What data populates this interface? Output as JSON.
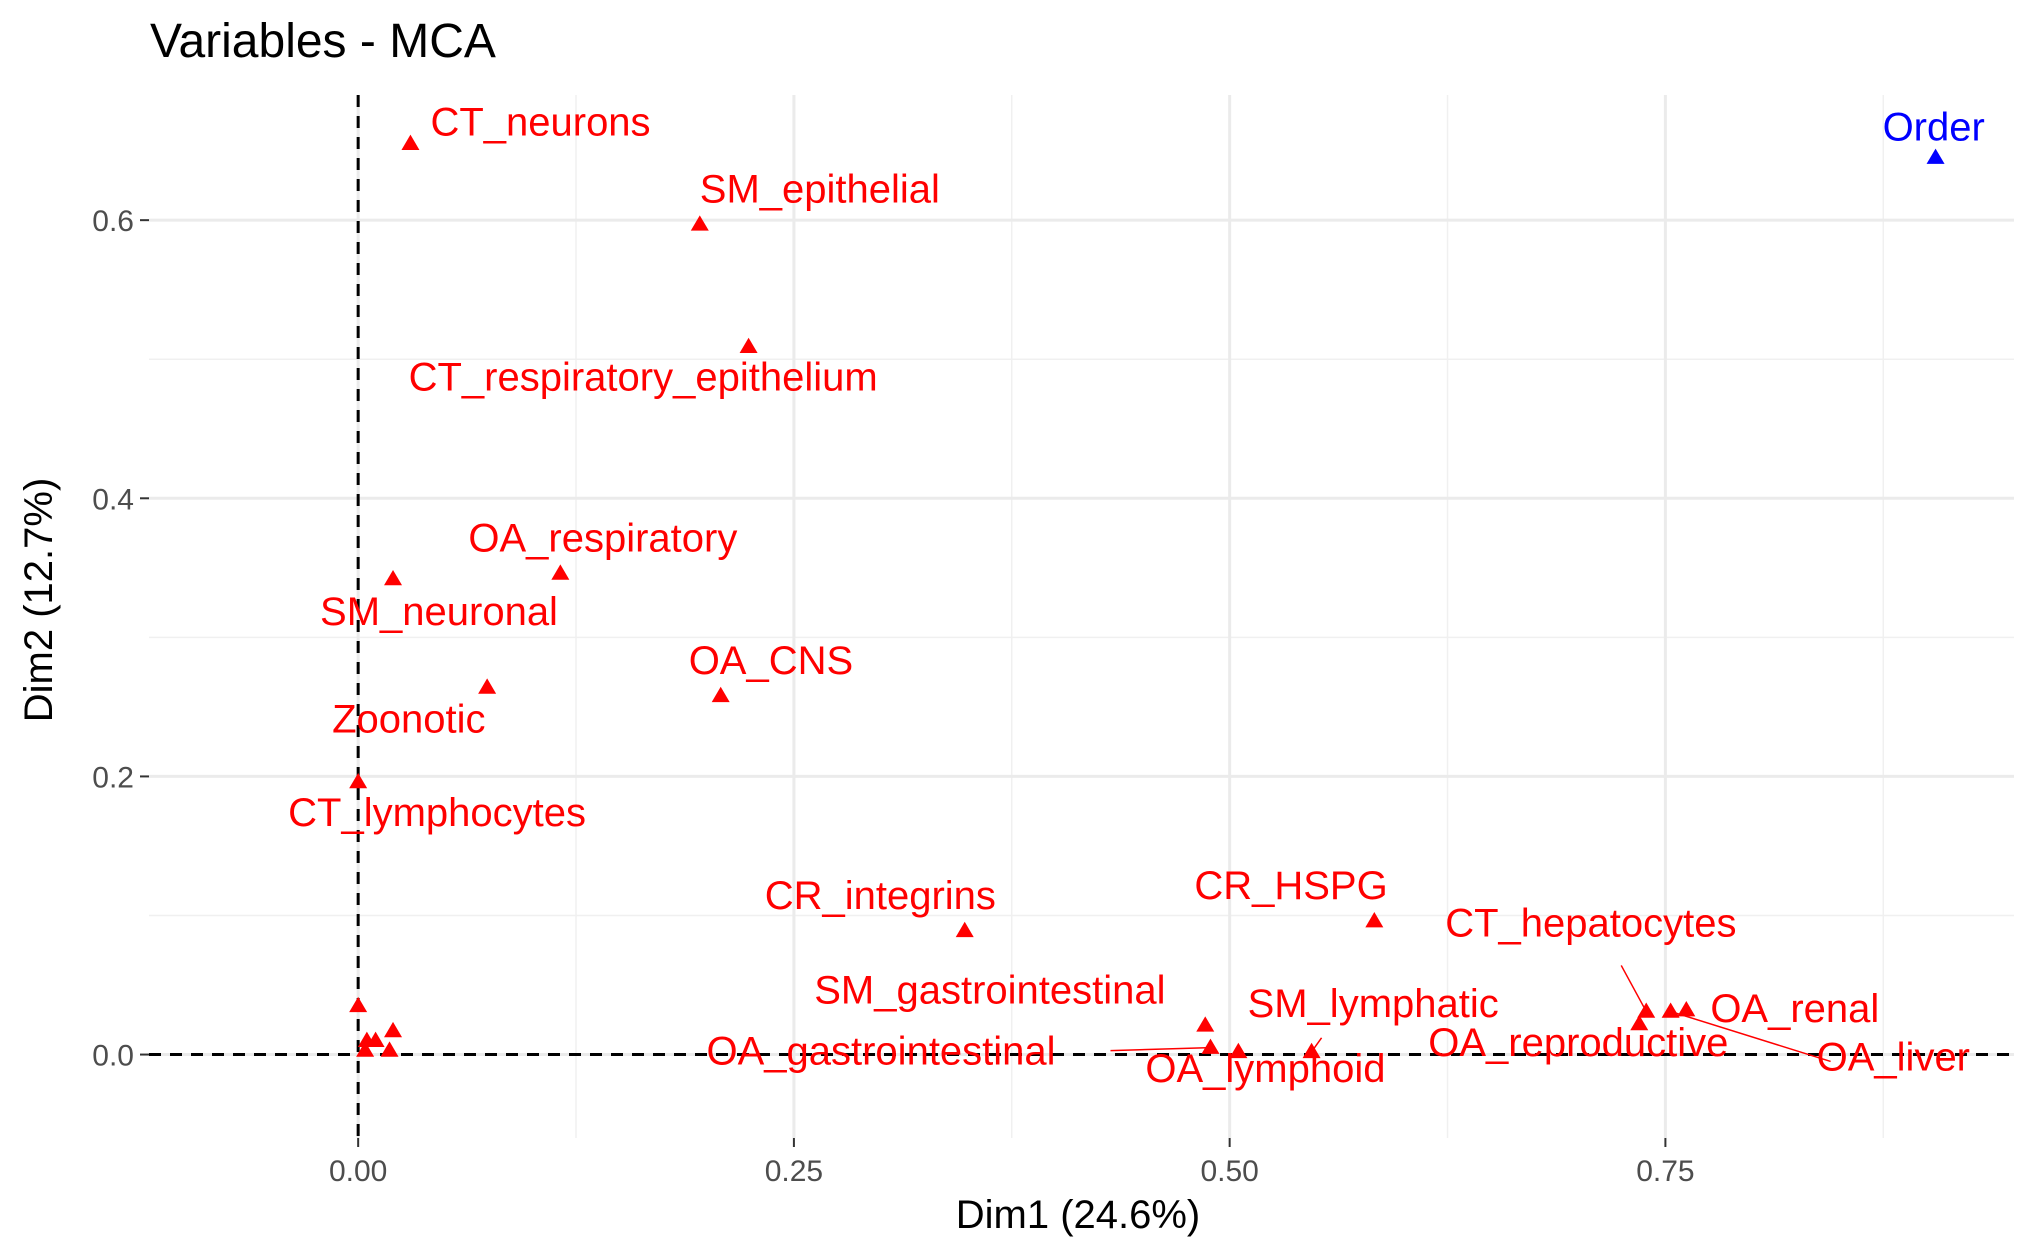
{
  "chart_data": {
    "type": "scatter",
    "title": "Variables - MCA",
    "xlabel": "Dim1 (24.6%)",
    "ylabel": "Dim2 (12.7%)",
    "xlim": [
      -0.12,
      0.95
    ],
    "ylim": [
      -0.06,
      0.69
    ],
    "xticks": [
      0.0,
      0.25,
      0.5,
      0.75
    ],
    "xtick_labels": [
      "0.00",
      "0.25",
      "0.50",
      "0.75"
    ],
    "yticks": [
      0.0,
      0.2,
      0.4,
      0.6
    ],
    "ytick_labels": [
      "0.0",
      "0.2",
      "0.4",
      "0.6"
    ],
    "grid": true,
    "reference_lines": {
      "x": 0,
      "y": 0,
      "style": "dashed"
    },
    "colors": {
      "active": "#ff0000",
      "supplementary": "#0000ff"
    },
    "points": [
      {
        "label": "CT_neurons",
        "x": 0.03,
        "y": 0.655,
        "color": "#ff0000"
      },
      {
        "label": "SM_epithelial",
        "x": 0.196,
        "y": 0.597,
        "color": "#ff0000"
      },
      {
        "label": "CT_respiratory_epithelium",
        "x": 0.224,
        "y": 0.509,
        "color": "#ff0000"
      },
      {
        "label": "OA_respiratory",
        "x": 0.116,
        "y": 0.346,
        "color": "#ff0000"
      },
      {
        "label": "SM_neuronal",
        "x": 0.02,
        "y": 0.342,
        "color": "#ff0000"
      },
      {
        "label": "OA_CNS",
        "x": 0.208,
        "y": 0.258,
        "color": "#ff0000"
      },
      {
        "label": "Zoonotic",
        "x": 0.074,
        "y": 0.264,
        "color": "#ff0000"
      },
      {
        "label": "CT_lymphocytes",
        "x": 0.0,
        "y": 0.196,
        "color": "#ff0000"
      },
      {
        "label": "CR_integrins",
        "x": 0.348,
        "y": 0.089,
        "color": "#ff0000"
      },
      {
        "label": "CR_HSPG",
        "x": 0.583,
        "y": 0.096,
        "color": "#ff0000"
      },
      {
        "label": "SM_gastrointestinal",
        "x": 0.486,
        "y": 0.021,
        "color": "#ff0000"
      },
      {
        "label": "OA_gastrointestinal",
        "x": 0.489,
        "y": 0.005,
        "color": "#ff0000"
      },
      {
        "label": "OA_lymphoid",
        "x": 0.505,
        "y": 0.002,
        "color": "#ff0000"
      },
      {
        "label": "SM_lymphatic",
        "x": 0.547,
        "y": 0.002,
        "color": "#ff0000"
      },
      {
        "label": "CT_hepatocytes",
        "x": 0.739,
        "y": 0.031,
        "color": "#ff0000"
      },
      {
        "label": "OA_renal",
        "x": 0.762,
        "y": 0.032,
        "color": "#ff0000"
      },
      {
        "label": "OA_reproductive",
        "x": 0.735,
        "y": 0.022,
        "color": "#ff0000"
      },
      {
        "label": "OA_liver",
        "x": 0.753,
        "y": 0.031,
        "color": "#ff0000"
      },
      {
        "label": "Order",
        "x": 0.905,
        "y": 0.645,
        "color": "#0000ff"
      },
      {
        "label": "",
        "x": 0.0,
        "y": 0.035,
        "color": "#ff0000"
      },
      {
        "label": "",
        "x": 0.005,
        "y": 0.01,
        "color": "#ff0000"
      },
      {
        "label": "",
        "x": 0.01,
        "y": 0.01,
        "color": "#ff0000"
      },
      {
        "label": "",
        "x": 0.004,
        "y": 0.003,
        "color": "#ff0000"
      },
      {
        "label": "",
        "x": 0.018,
        "y": 0.003,
        "color": "#ff0000"
      },
      {
        "label": "",
        "x": 0.02,
        "y": 0.017,
        "color": "#ff0000"
      }
    ]
  }
}
